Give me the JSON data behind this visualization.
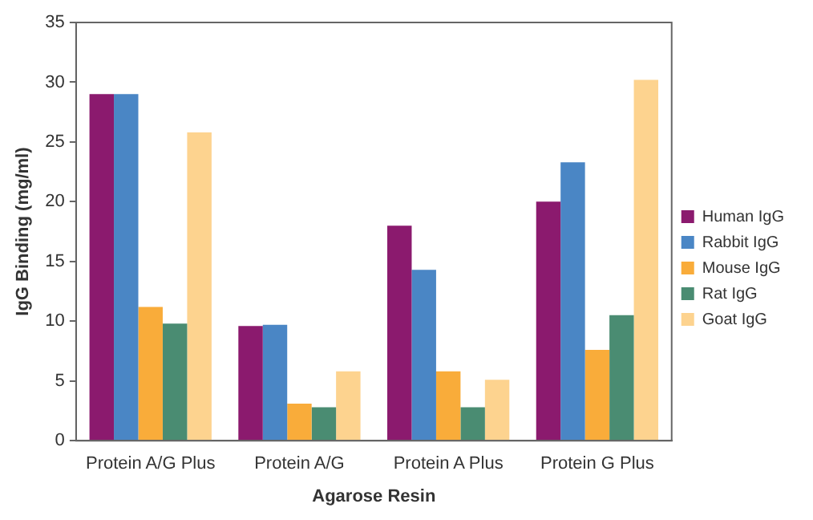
{
  "chart_data": {
    "type": "bar",
    "xlabel": "Agarose Resin",
    "ylabel": "IgG Binding (mg/ml)",
    "categories": [
      "Protein A/G Plus",
      "Protein A/G",
      "Protein A Plus",
      "Protein G Plus"
    ],
    "series": [
      {
        "name": "Human IgG",
        "color": "#8b1a6e",
        "values": [
          29,
          9.6,
          18,
          20
        ]
      },
      {
        "name": "Rabbit IgG",
        "color": "#4a86c5",
        "values": [
          29,
          9.7,
          14.3,
          23.3
        ]
      },
      {
        "name": "Mouse IgG",
        "color": "#f9ac3a",
        "values": [
          11.2,
          3.1,
          5.8,
          7.6
        ]
      },
      {
        "name": "Rat IgG",
        "color": "#4a8c72",
        "values": [
          9.8,
          2.8,
          2.8,
          10.5
        ]
      },
      {
        "name": "Goat IgG",
        "color": "#fdd38f",
        "values": [
          25.8,
          5.8,
          5.1,
          30.2
        ]
      }
    ],
    "ylim": [
      0,
      35
    ],
    "yticks": [
      0,
      5,
      10,
      15,
      20,
      25,
      30,
      35
    ],
    "grid": false,
    "legend": "right"
  }
}
